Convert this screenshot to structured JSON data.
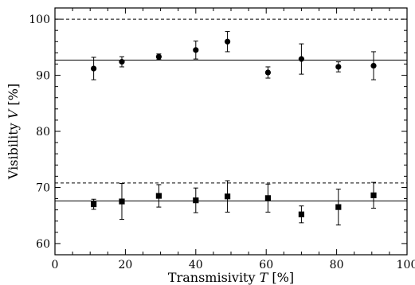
{
  "chart_data": {
    "type": "scatter",
    "xlabel": "Transmisivity",
    "xlabel_var": "T",
    "xlabel_unit": "[%]",
    "ylabel": "Visibility",
    "ylabel_var": "V",
    "ylabel_unit": "[%]",
    "xlim": [
      0,
      100
    ],
    "ylim": [
      58,
      102
    ],
    "xticks": [
      0,
      20,
      40,
      60,
      80,
      100
    ],
    "yticks": [
      60,
      70,
      80,
      90,
      100
    ],
    "x_minor_step": 5,
    "y_minor_step": 2,
    "grid": false,
    "series": [
      {
        "marker": "circle",
        "color": "#000000",
        "points": [
          {
            "x": 11,
            "y": 91.2,
            "err": 2.0
          },
          {
            "x": 19,
            "y": 92.4,
            "err": 0.9
          },
          {
            "x": 29.5,
            "y": 93.3,
            "err": 0.5
          },
          {
            "x": 40,
            "y": 94.5,
            "err": 1.6
          },
          {
            "x": 49,
            "y": 96.0,
            "err": 1.8
          },
          {
            "x": 60.5,
            "y": 90.5,
            "err": 1.0
          },
          {
            "x": 70,
            "y": 92.9,
            "err": 2.7
          },
          {
            "x": 80.5,
            "y": 91.5,
            "err": 0.9
          },
          {
            "x": 90.5,
            "y": 91.7,
            "err": 2.5
          }
        ]
      },
      {
        "marker": "square",
        "color": "#000000",
        "points": [
          {
            "x": 11,
            "y": 67.0,
            "err": 0.9
          },
          {
            "x": 19,
            "y": 67.5,
            "err": 3.2
          },
          {
            "x": 29.5,
            "y": 68.5,
            "err": 2.0
          },
          {
            "x": 40,
            "y": 67.7,
            "err": 2.2
          },
          {
            "x": 49,
            "y": 68.4,
            "err": 2.8
          },
          {
            "x": 60.5,
            "y": 68.1,
            "err": 2.5
          },
          {
            "x": 70,
            "y": 65.2,
            "err": 1.5
          },
          {
            "x": 80.5,
            "y": 66.5,
            "err": 3.2
          },
          {
            "x": 90.5,
            "y": 68.6,
            "err": 2.3
          }
        ]
      }
    ],
    "reference_lines": [
      {
        "y": 100,
        "style": "dashed"
      },
      {
        "y": 92.7,
        "style": "solid"
      },
      {
        "y": 70.8,
        "style": "dashed"
      },
      {
        "y": 67.6,
        "style": "solid"
      }
    ]
  }
}
